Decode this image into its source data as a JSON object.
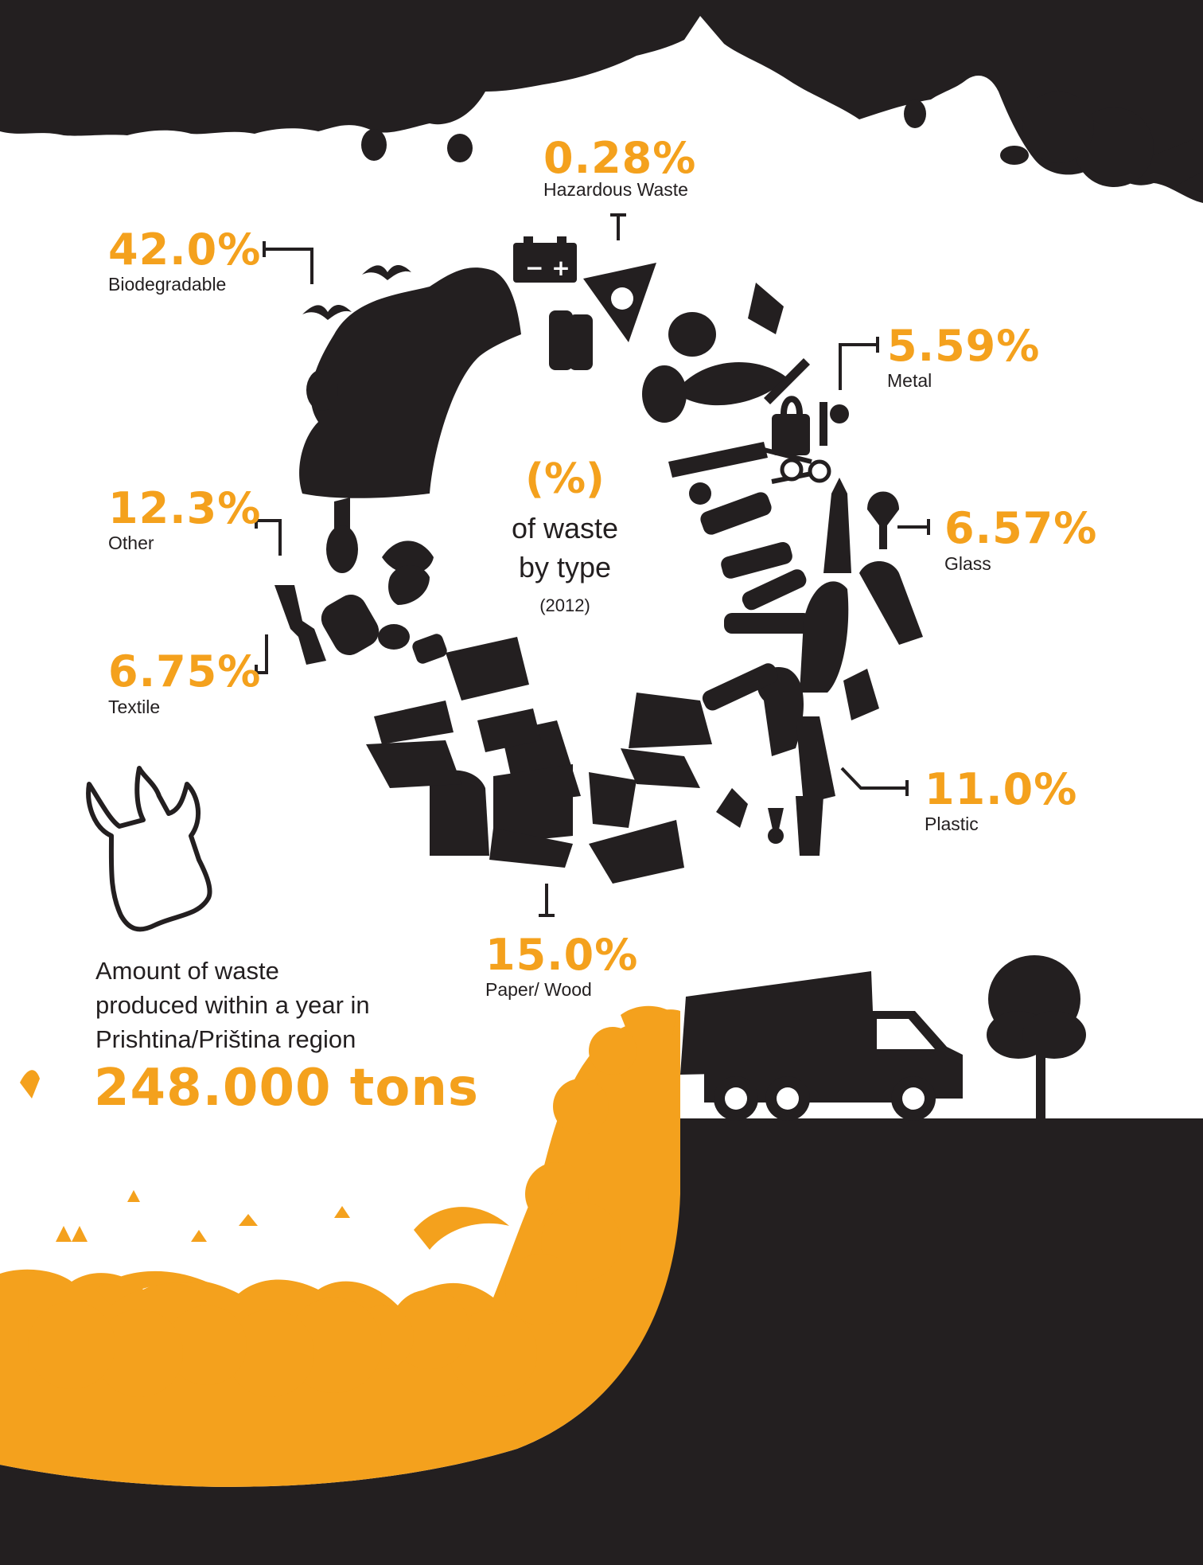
{
  "colors": {
    "accent": "#f4a11d",
    "ink": "#231f20",
    "background": "#ffffff"
  },
  "center": {
    "percent_sign": "(%)",
    "line1": "of waste",
    "line2": "by type",
    "year": "(2012)"
  },
  "categories": [
    {
      "key": "hazardous",
      "percent": "0.28%",
      "label": "Hazardous Waste",
      "value": 0.28
    },
    {
      "key": "biodegradable",
      "percent": "42.0%",
      "label": "Biodegradable",
      "value": 42.0
    },
    {
      "key": "metal",
      "percent": "5.59%",
      "label": "Metal",
      "value": 5.59
    },
    {
      "key": "other",
      "percent": "12.3%",
      "label": "Other",
      "value": 12.3
    },
    {
      "key": "glass",
      "percent": "6.57%",
      "label": "Glass",
      "value": 6.57
    },
    {
      "key": "textile",
      "percent": "6.75%",
      "label": "Textile",
      "value": 6.75
    },
    {
      "key": "plastic",
      "percent": "11.0%",
      "label": "Plastic",
      "value": 11.0
    },
    {
      "key": "paper",
      "percent": "15.0%",
      "label": "Paper/ Wood",
      "value": 15.0
    }
  ],
  "summary": {
    "line1": "Amount of waste",
    "line2": "produced within a year in",
    "line3": "Prishtina/Priština region",
    "amount": "248.000 tons"
  },
  "icons": [
    "battery-icon",
    "radiation-icon",
    "fish-icon",
    "bottle-icon",
    "newspaper-icon",
    "plastic-bag-icon",
    "garbage-truck-icon",
    "tree-icon",
    "bird-icon"
  ]
}
